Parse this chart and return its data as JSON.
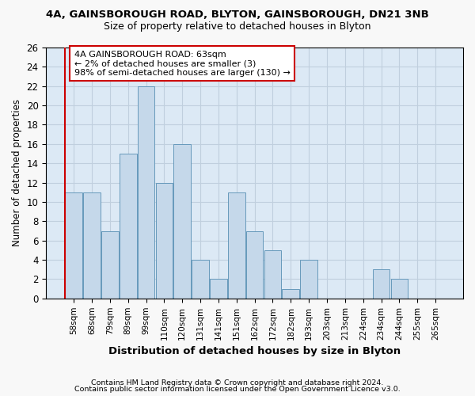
{
  "title_line1": "4A, GAINSBOROUGH ROAD, BLYTON, GAINSBOROUGH, DN21 3NB",
  "title_line2": "Size of property relative to detached houses in Blyton",
  "xlabel": "Distribution of detached houses by size in Blyton",
  "ylabel": "Number of detached properties",
  "footnote1": "Contains HM Land Registry data © Crown copyright and database right 2024.",
  "footnote2": "Contains public sector information licensed under the Open Government Licence v3.0.",
  "bar_labels": [
    "58sqm",
    "68sqm",
    "79sqm",
    "89sqm",
    "99sqm",
    "110sqm",
    "120sqm",
    "131sqm",
    "141sqm",
    "151sqm",
    "162sqm",
    "172sqm",
    "182sqm",
    "193sqm",
    "203sqm",
    "213sqm",
    "224sqm",
    "234sqm",
    "244sqm",
    "255sqm",
    "265sqm"
  ],
  "bar_values": [
    11,
    11,
    7,
    15,
    22,
    12,
    16,
    4,
    2,
    11,
    7,
    5,
    1,
    4,
    0,
    0,
    0,
    3,
    2,
    0,
    0
  ],
  "bar_color": "#c5d8ea",
  "bar_edge_color": "#6699bb",
  "annotation_line1": "4A GAINSBOROUGH ROAD: 63sqm",
  "annotation_line2": "← 2% of detached houses are smaller (3)",
  "annotation_line3": "98% of semi-detached houses are larger (130) →",
  "annotation_box_edge_color": "#cc0000",
  "ylim": [
    0,
    26
  ],
  "yticks": [
    0,
    2,
    4,
    6,
    8,
    10,
    12,
    14,
    16,
    18,
    20,
    22,
    24,
    26
  ],
  "grid_color": "#c0cfde",
  "plot_bg_color": "#dce9f5",
  "fig_bg_color": "#f8f8f8",
  "red_line_color": "#cc0000"
}
